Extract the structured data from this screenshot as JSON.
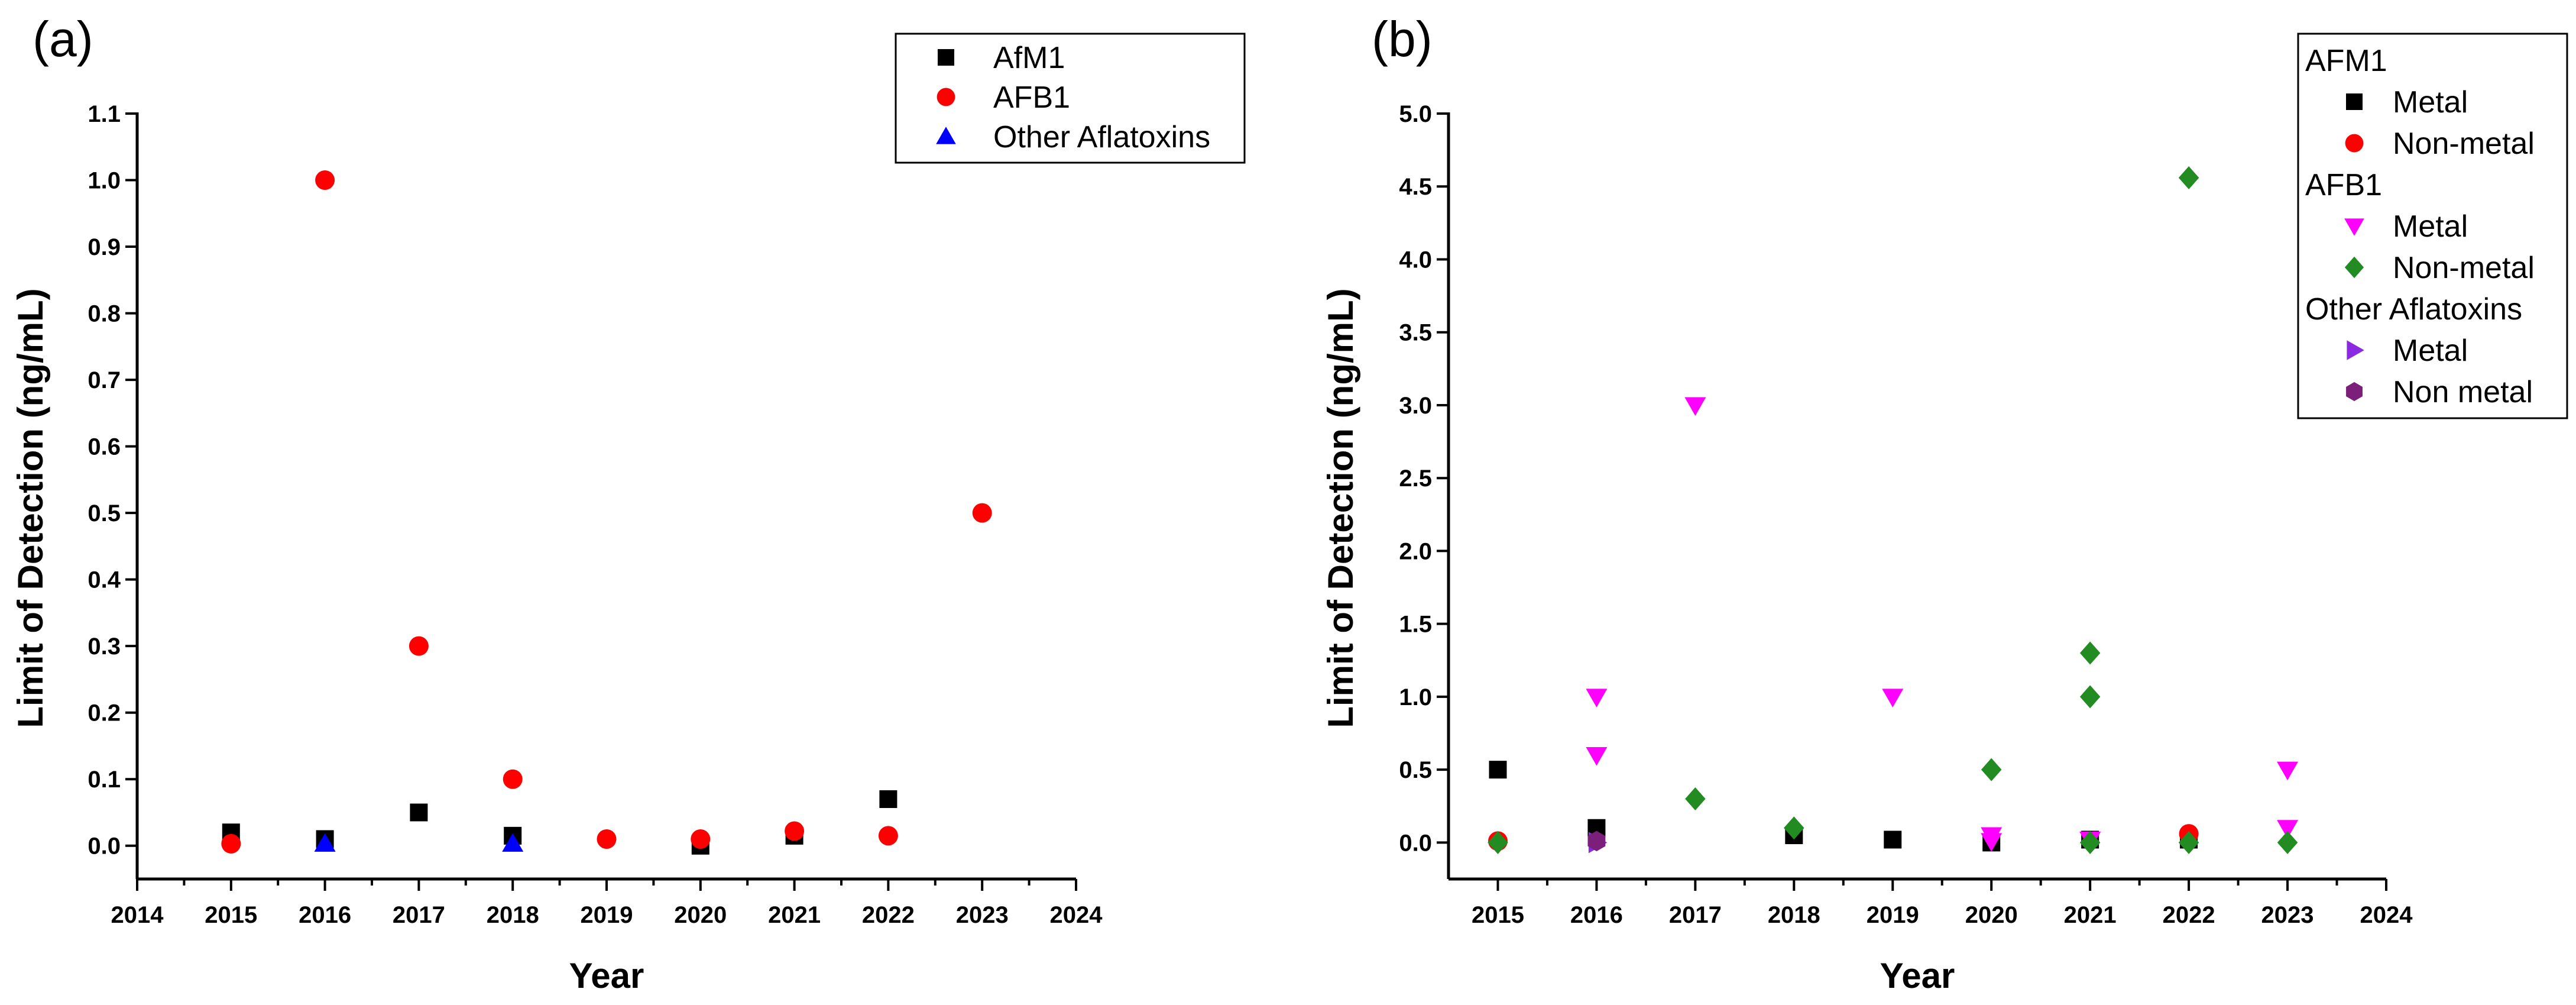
{
  "chart_data": [
    {
      "type": "scatter",
      "panel_label": "(a)",
      "title": "",
      "xlabel": "Year",
      "ylabel": "Limit of Detection (ng/mL)",
      "xlim": [
        2014,
        2024
      ],
      "ylim": [
        -0.05,
        1.1
      ],
      "x_ticks": [
        "2014",
        "2015",
        "2016",
        "2017",
        "2018",
        "2019",
        "2020",
        "2021",
        "2022",
        "2023",
        "2024"
      ],
      "y_ticks": [
        "0.0",
        "0.1",
        "0.2",
        "0.3",
        "0.4",
        "0.5",
        "0.6",
        "0.7",
        "0.8",
        "0.9",
        "1.0",
        "1.1"
      ],
      "legend_position": "top-right",
      "legend": [
        {
          "type": "entry",
          "label": "AfM1",
          "series": 0
        },
        {
          "type": "entry",
          "label": "AFB1",
          "series": 1
        },
        {
          "type": "entry",
          "label": "Other Aflatoxins",
          "series": 2
        }
      ],
      "series": [
        {
          "name": "AfM1",
          "marker": "square",
          "color": "#000000",
          "points": [
            [
              2015,
              0.02
            ],
            [
              2016,
              0.01
            ],
            [
              2017,
              0.05
            ],
            [
              2018,
              0.015
            ],
            [
              2020,
              0.0
            ],
            [
              2021,
              0.015
            ],
            [
              2022,
              0.07
            ]
          ]
        },
        {
          "name": "AFB1",
          "marker": "circle",
          "color": "#ff0000",
          "points": [
            [
              2015,
              0.003
            ],
            [
              2016,
              1.0
            ],
            [
              2017,
              0.3
            ],
            [
              2018,
              0.1
            ],
            [
              2019,
              0.01
            ],
            [
              2020,
              0.01
            ],
            [
              2021,
              0.022
            ],
            [
              2022,
              0.015
            ],
            [
              2023,
              0.5
            ]
          ]
        },
        {
          "name": "Other Aflatoxins",
          "marker": "triangle-up",
          "color": "#0000ff",
          "points": [
            [
              2016,
              0.003
            ],
            [
              2018,
              0.003
            ]
          ]
        }
      ]
    },
    {
      "type": "scatter",
      "panel_label": "(b)",
      "title": "",
      "xlabel": "Year",
      "ylabel": "Limit of Detection (ng/mL)",
      "xlim": [
        2014.5,
        2024
      ],
      "ylim": [
        -0.25,
        5.0
      ],
      "x_ticks": [
        "2015",
        "2016",
        "2017",
        "2018",
        "2019",
        "2020",
        "2021",
        "2022",
        "2023",
        "2024"
      ],
      "y_ticks": [
        "0.0",
        "0.5",
        "1.0",
        "1.5",
        "2.0",
        "2.5",
        "3.0",
        "3.5",
        "4.0",
        "4.5",
        "5.0"
      ],
      "legend_position": "top-right",
      "legend": [
        {
          "type": "header",
          "label": "AFM1"
        },
        {
          "type": "entry",
          "label": "Metal",
          "series": 0
        },
        {
          "type": "entry",
          "label": "Non-metal",
          "series": 1
        },
        {
          "type": "header",
          "label": "AFB1"
        },
        {
          "type": "entry",
          "label": "Metal",
          "series": 2
        },
        {
          "type": "entry",
          "label": "Non-metal",
          "series": 3
        },
        {
          "type": "header",
          "label": "Other Aflatoxins"
        },
        {
          "type": "entry",
          "label": "Metal",
          "series": 4
        },
        {
          "type": "entry",
          "label": "Non metal",
          "series": 5
        }
      ],
      "series": [
        {
          "name": "AFM1 Metal",
          "marker": "square",
          "color": "#000000",
          "points": [
            [
              2015,
              0.5
            ],
            [
              2016,
              0.1
            ],
            [
              2018,
              0.05
            ],
            [
              2019,
              0.02
            ],
            [
              2020,
              0.0
            ],
            [
              2021,
              0.02
            ],
            [
              2022,
              0.02
            ]
          ]
        },
        {
          "name": "AFM1 Non-metal",
          "marker": "circle",
          "color": "#ff0000",
          "points": [
            [
              2015,
              0.01
            ],
            [
              2022,
              0.06
            ]
          ]
        },
        {
          "name": "AFB1 Metal",
          "marker": "triangle-down",
          "color": "#ff00ff",
          "points": [
            [
              2016,
              1.0
            ],
            [
              2016,
              0.6
            ],
            [
              2017,
              3.0
            ],
            [
              2019,
              1.0
            ],
            [
              2020,
              0.05
            ],
            [
              2020,
              0.01
            ],
            [
              2021,
              0.02
            ],
            [
              2023,
              0.5
            ],
            [
              2023,
              0.1
            ]
          ]
        },
        {
          "name": "AFB1 Non-metal",
          "marker": "diamond",
          "color": "#228b22",
          "points": [
            [
              2015,
              0.0
            ],
            [
              2017,
              0.3
            ],
            [
              2018,
              0.1
            ],
            [
              2020,
              0.5
            ],
            [
              2021,
              1.3
            ],
            [
              2021,
              1.0
            ],
            [
              2021,
              0.0
            ],
            [
              2022,
              4.56
            ],
            [
              2022,
              0.0
            ],
            [
              2023,
              0.0
            ]
          ]
        },
        {
          "name": "Other Aflatoxins Metal",
          "marker": "triangle-right",
          "color": "#8a2be2",
          "points": [
            [
              2016,
              0.0
            ]
          ]
        },
        {
          "name": "Other Aflatoxins Non metal",
          "marker": "hexagon",
          "color": "#7b1f7b",
          "points": [
            [
              2016,
              0.01
            ]
          ]
        }
      ]
    }
  ]
}
